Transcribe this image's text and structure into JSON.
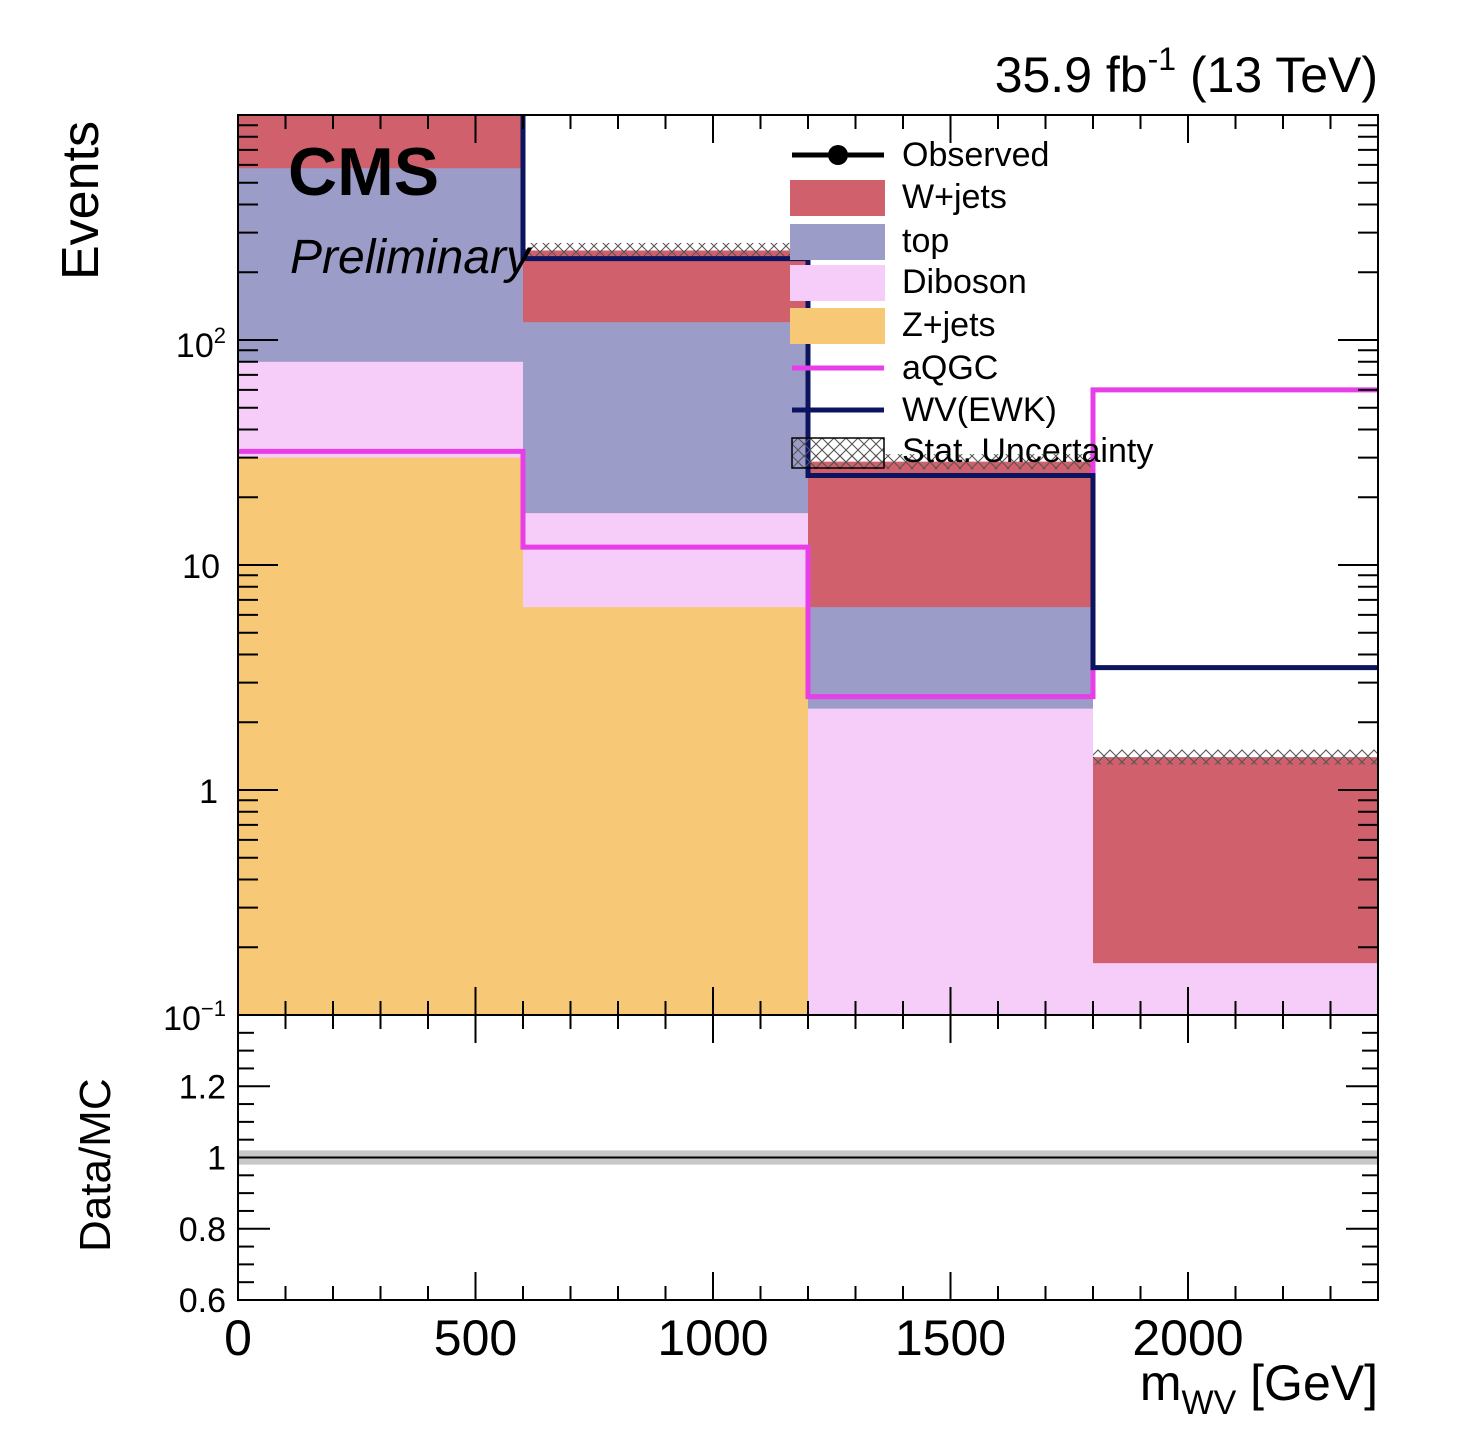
{
  "header": {
    "lumi_main": "35.9 fb",
    "lumi_sup": "-1",
    "lumi_tail": " (13 TeV)",
    "cms": "CMS",
    "preliminary": "Preliminary"
  },
  "legend": {
    "observed": "Observed",
    "wjets": "W+jets",
    "top": "top",
    "diboson": "Diboson",
    "zjets": "Z+jets",
    "aqgc": "aQGC",
    "wvewk": "WV(EWK)",
    "stat": "Stat. Uncertainty"
  },
  "colors": {
    "wjets": "#d0606c",
    "top": "#9c9cc8",
    "diboson": "#f5cdf8",
    "zjets": "#f7c977",
    "aqgc": "#e83ee8",
    "wvewk": "#0c1460",
    "ratio_band": "#c8c8c8"
  },
  "chart_data": [
    {
      "type": "bar",
      "stacked": true,
      "ylabel": "Events",
      "yscale": "log",
      "ylim": [
        0.1,
        1000
      ],
      "xlim": [
        0,
        2400
      ],
      "bin_edges": [
        0,
        600,
        1200,
        1800,
        2400
      ],
      "y_tick_labels": [
        "10-1",
        "1",
        "10",
        "102"
      ],
      "series": [
        {
          "name": "Z+jets",
          "key": "zjets",
          "values": [
            30,
            6.5,
            0,
            0
          ]
        },
        {
          "name": "Diboson",
          "key": "diboson",
          "values": [
            50,
            10.5,
            2.3,
            0.17
          ]
        },
        {
          "name": "top",
          "key": "top",
          "values": [
            500,
            103,
            4.2,
            0
          ]
        },
        {
          "name": "W+jets",
          "key": "wjets",
          "values": [
            990,
            130,
            22.3,
            1.23
          ]
        }
      ],
      "stacked_totals": [
        1570,
        250,
        28.8,
        1.4
      ],
      "lines": [
        {
          "name": "aQGC",
          "key": "aqgc",
          "values": [
            32,
            12,
            2.6,
            60
          ]
        },
        {
          "name": "WV(EWK)",
          "key": "wvewk",
          "values": [
            1300,
            230,
            25,
            3.5
          ]
        }
      ],
      "uncertainty": {
        "name": "Stat. Uncertainty"
      }
    },
    {
      "type": "line",
      "ylabel": "Data/MC",
      "xlabel": "m",
      "xlabel_sub": "WV",
      "xlabel_unit": " [GeV]",
      "xlim": [
        0,
        2400
      ],
      "ylim": [
        0.6,
        1.4
      ],
      "x_ticks": [
        0,
        500,
        1000,
        1500,
        2000
      ],
      "y_ticks": [
        0.6,
        0.8,
        1,
        1.2
      ],
      "y_tick_labels": [
        "0.6",
        "0.8",
        "1",
        "1.2"
      ],
      "reference_line": 1,
      "band": [
        0.98,
        1.02
      ]
    }
  ]
}
